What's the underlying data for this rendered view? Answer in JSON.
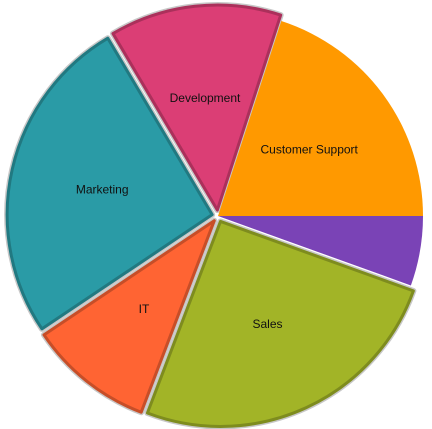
{
  "chart_data": {
    "type": "pie",
    "start_angle_deg": 0,
    "direction": "counterclockwise_from_3_oclock",
    "slices": [
      {
        "label": "Customer Support",
        "value": 20.0,
        "color": "#FF9900",
        "label_shown": true,
        "exploded": false
      },
      {
        "label": "Development",
        "value": 13.5,
        "color": "#DB3E75",
        "label_shown": true,
        "exploded": true
      },
      {
        "label": "Marketing",
        "value": 25.9,
        "color": "#2A9BA6",
        "label_shown": true,
        "exploded": true
      },
      {
        "label": "IT",
        "value": 9.8,
        "color": "#FF6433",
        "label_shown": true,
        "exploded": true
      },
      {
        "label": "Sales",
        "value": 25.3,
        "color": "#A2B427",
        "label_shown": true,
        "exploded": true
      },
      {
        "label": "",
        "value": 5.5,
        "color": "#7A43B6",
        "label_shown": false,
        "exploded": false
      }
    ],
    "title": "",
    "legend": "none"
  }
}
